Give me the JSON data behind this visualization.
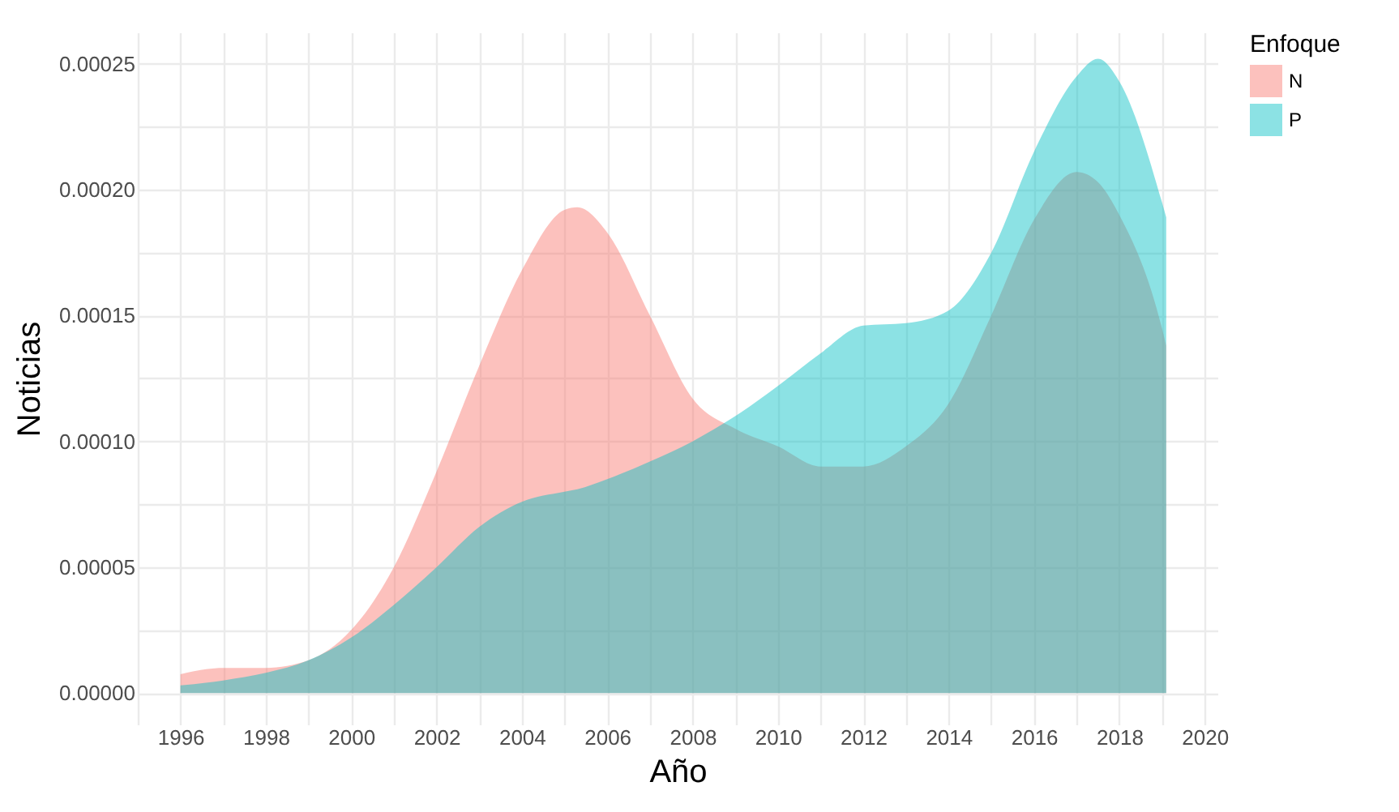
{
  "chart_data": {
    "type": "area",
    "xlabel": "Año",
    "ylabel": "Noticias",
    "legend_title": "Enfoque",
    "x": [
      1996,
      1997,
      1998,
      1999,
      2000,
      2001,
      2002,
      2003,
      2004,
      2005,
      2005.3,
      2006,
      2007,
      2008,
      2009,
      2010,
      2011,
      2012,
      2013,
      2014,
      2015,
      2016,
      2017,
      2017.5,
      2018,
      2019,
      2019.1
    ],
    "series": [
      {
        "name": "N",
        "color": "#f8766d",
        "values": [
          7.5e-06,
          1e-05,
          1e-05,
          1.3e-05,
          2.5e-05,
          5e-05,
          8.8e-05,
          0.00013,
          0.000168,
          0.000192,
          0.000193,
          0.000183,
          0.00015,
          0.000117,
          0.000105,
          9.8e-05,
          9e-05,
          9e-05,
          9.8e-05,
          0.000115,
          0.00015,
          0.000188,
          0.000207,
          0.000203,
          0.00019,
          0.000145,
          0.000138
        ]
      },
      {
        "name": "P",
        "color": "#00bfc4",
        "values": [
          3e-06,
          5e-06,
          8e-06,
          1.3e-05,
          2.2e-05,
          3.5e-05,
          5e-05,
          6.6e-05,
          7.6e-05,
          8e-05,
          8.1e-05,
          8.5e-05,
          9.2e-05,
          0.0001,
          0.00011,
          0.000122,
          0.000135,
          0.000146,
          0.000147,
          0.000152,
          0.000175,
          0.000215,
          0.000245,
          0.000252,
          0.000243,
          0.000195,
          0.000189
        ]
      }
    ],
    "xlim": [
      1995,
      2020.3
    ],
    "xticks": [
      {
        "value": 1995,
        "label": null
      },
      1996,
      {
        "value": 1997,
        "label": null
      },
      1998,
      {
        "value": 1999,
        "label": null
      },
      2000,
      {
        "value": 2001,
        "label": null
      },
      2002,
      {
        "value": 2003,
        "label": null
      },
      2004,
      {
        "value": 2005,
        "label": null
      },
      2006,
      {
        "value": 2007,
        "label": null
      },
      2008,
      {
        "value": 2009,
        "label": null
      },
      2010,
      {
        "value": 2011,
        "label": null
      },
      2012,
      {
        "value": 2013,
        "label": null
      },
      2014,
      {
        "value": 2015,
        "label": null
      },
      2016,
      {
        "value": 2017,
        "label": null
      },
      2018,
      {
        "value": 2019,
        "label": null
      },
      2020
    ],
    "ylim": [
      -1.25e-05,
      0.0002625
    ],
    "yticks": [
      {
        "value": 0,
        "label": "0.00000"
      },
      {
        "value": 2.5e-05,
        "label": null
      },
      {
        "value": 5e-05,
        "label": "0.00005"
      },
      {
        "value": 7.5e-05,
        "label": null
      },
      {
        "value": 0.0001,
        "label": "0.00010"
      },
      {
        "value": 0.000125,
        "label": null
      },
      {
        "value": 0.00015,
        "label": "0.00015"
      },
      {
        "value": 0.000175,
        "label": null
      },
      {
        "value": 0.0002,
        "label": "0.00020"
      },
      {
        "value": 0.000225,
        "label": null
      },
      {
        "value": 0.00025,
        "label": "0.00025"
      }
    ],
    "grid": true,
    "legend": "right"
  }
}
